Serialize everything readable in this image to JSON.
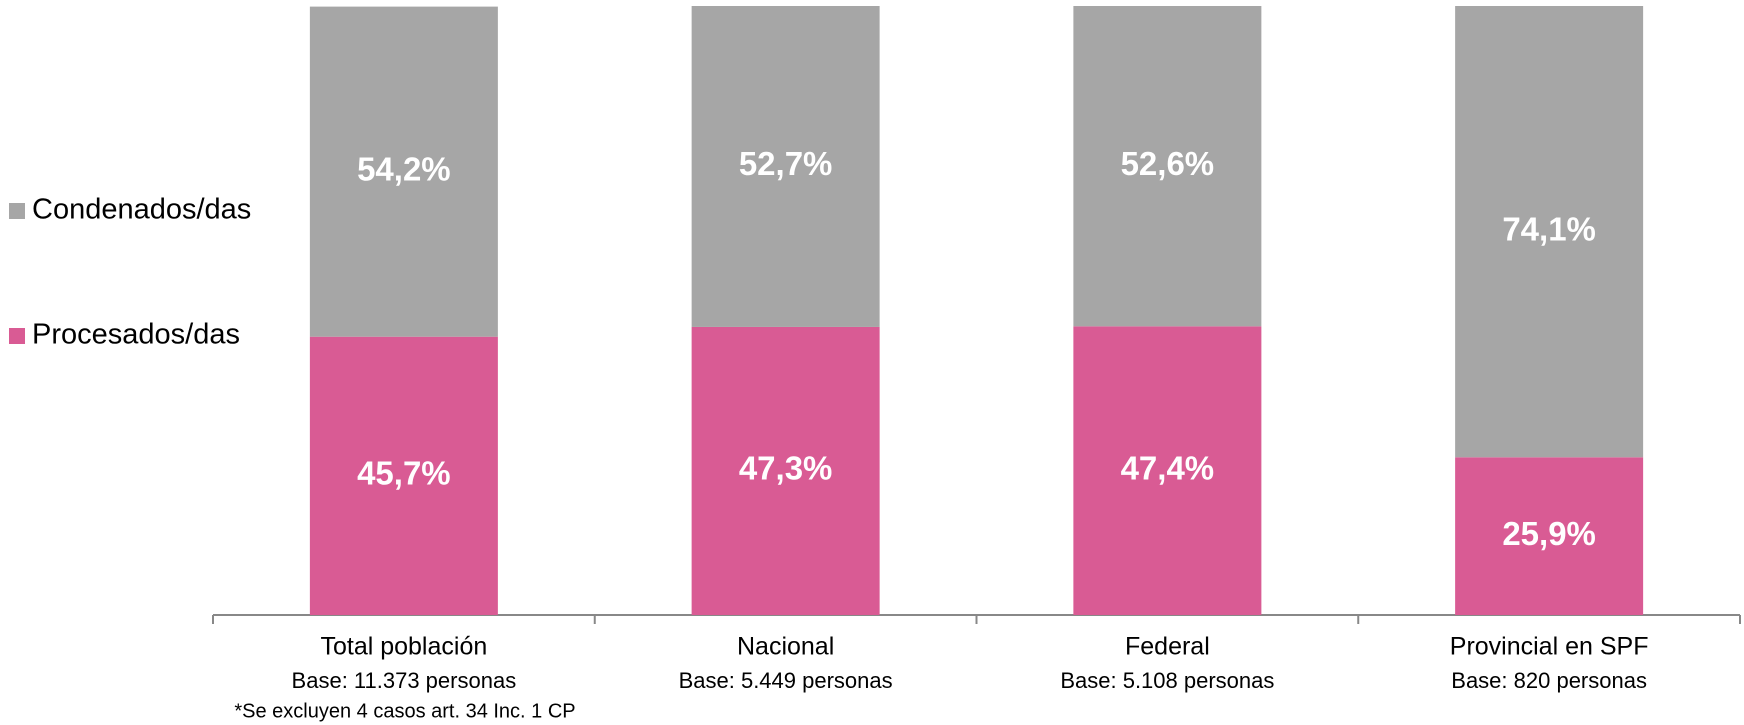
{
  "chart_data": {
    "type": "stacked_bar",
    "categories": [
      "Total población",
      "Nacional",
      "Federal",
      "Provincial en SPF"
    ],
    "bases": [
      "Base: 11.373 personas",
      "Base: 5.449 personas",
      "Base: 5.108 personas",
      "Base: 820 personas"
    ],
    "note": "*Se excluyen 4 casos art. 34 Inc. 1 CP",
    "series": [
      {
        "name": "Procesados/das",
        "color": "#d95b94",
        "values": [
          45.7,
          47.3,
          47.4,
          25.9
        ],
        "value_labels": [
          "45,7%",
          "47,3%",
          "47,4%",
          "25,9%"
        ]
      },
      {
        "name": "Condenados/das",
        "color": "#a6a6a6",
        "values": [
          54.2,
          52.7,
          52.6,
          74.1
        ],
        "value_labels": [
          "54,2%",
          "52,7%",
          "52,6%",
          "74,1%"
        ]
      }
    ],
    "ylim": [
      0,
      100
    ],
    "legend": "left"
  }
}
